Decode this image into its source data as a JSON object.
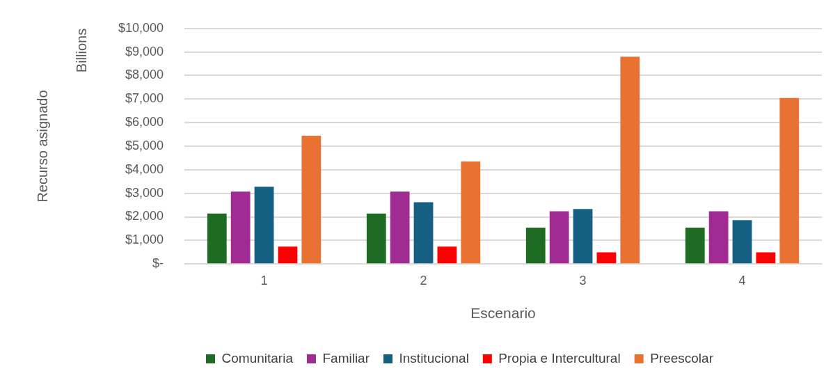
{
  "chart_data": {
    "type": "bar",
    "xlabel": "Escenario",
    "ylabel": "Recurso asignado",
    "annotations": [
      "Billions"
    ],
    "categories": [
      "1",
      "2",
      "3",
      "4"
    ],
    "series": [
      {
        "name": "Comunitaria",
        "color": "#1e6b24",
        "values": [
          2140,
          2140,
          1540,
          1540
        ]
      },
      {
        "name": "Familiar",
        "color": "#a02b93",
        "values": [
          3070,
          3070,
          2240,
          2240
        ]
      },
      {
        "name": "Institucional",
        "color": "#156082",
        "values": [
          3280,
          2620,
          2330,
          1860
        ]
      },
      {
        "name": "Propia e Intercultural",
        "color": "#ff0000",
        "values": [
          735,
          735,
          490,
          490
        ]
      },
      {
        "name": "Preescolar",
        "color": "#e97132",
        "values": [
          5440,
          4350,
          8800,
          7050
        ]
      }
    ],
    "ylim": [
      0,
      10000
    ],
    "yticks": [
      {
        "value": 0,
        "label": "$-"
      },
      {
        "value": 1000,
        "label": "$1,000"
      },
      {
        "value": 2000,
        "label": "$2,000"
      },
      {
        "value": 3000,
        "label": "$3,000"
      },
      {
        "value": 4000,
        "label": "$4,000"
      },
      {
        "value": 5000,
        "label": "$5,000"
      },
      {
        "value": 6000,
        "label": "$6,000"
      },
      {
        "value": 7000,
        "label": "$7,000"
      },
      {
        "value": 8000,
        "label": "$8,000"
      },
      {
        "value": 9000,
        "label": "$9,000"
      },
      {
        "value": 10000,
        "label": "$10,000"
      }
    ],
    "grid": "y",
    "legend": "bottom"
  }
}
